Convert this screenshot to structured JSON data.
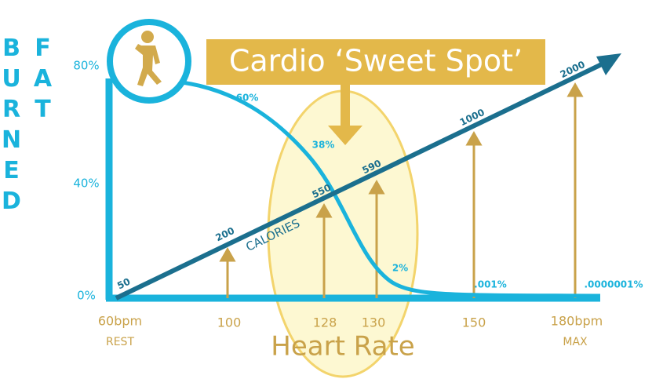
{
  "title": "Cardio ‘Sweet Spot’",
  "y_axis_label": "FAT BURNED",
  "y_ticks": [
    "80%",
    "40%",
    "0%"
  ],
  "x_ticks": [
    {
      "label": "60bpm",
      "sub": "REST"
    },
    {
      "label": "100"
    },
    {
      "label": "128"
    },
    {
      "label": "130"
    },
    {
      "label": "150"
    },
    {
      "label": "180bpm",
      "sub": "MAX"
    }
  ],
  "x_axis_label": "Heart Rate",
  "line_label": "CALORIES",
  "calorie_labels": [
    "50",
    "200",
    "550",
    "590",
    "1000",
    "2000"
  ],
  "fat_labels": [
    "60%",
    "38%",
    "2%",
    ".001%",
    ".0000001%"
  ]
}
